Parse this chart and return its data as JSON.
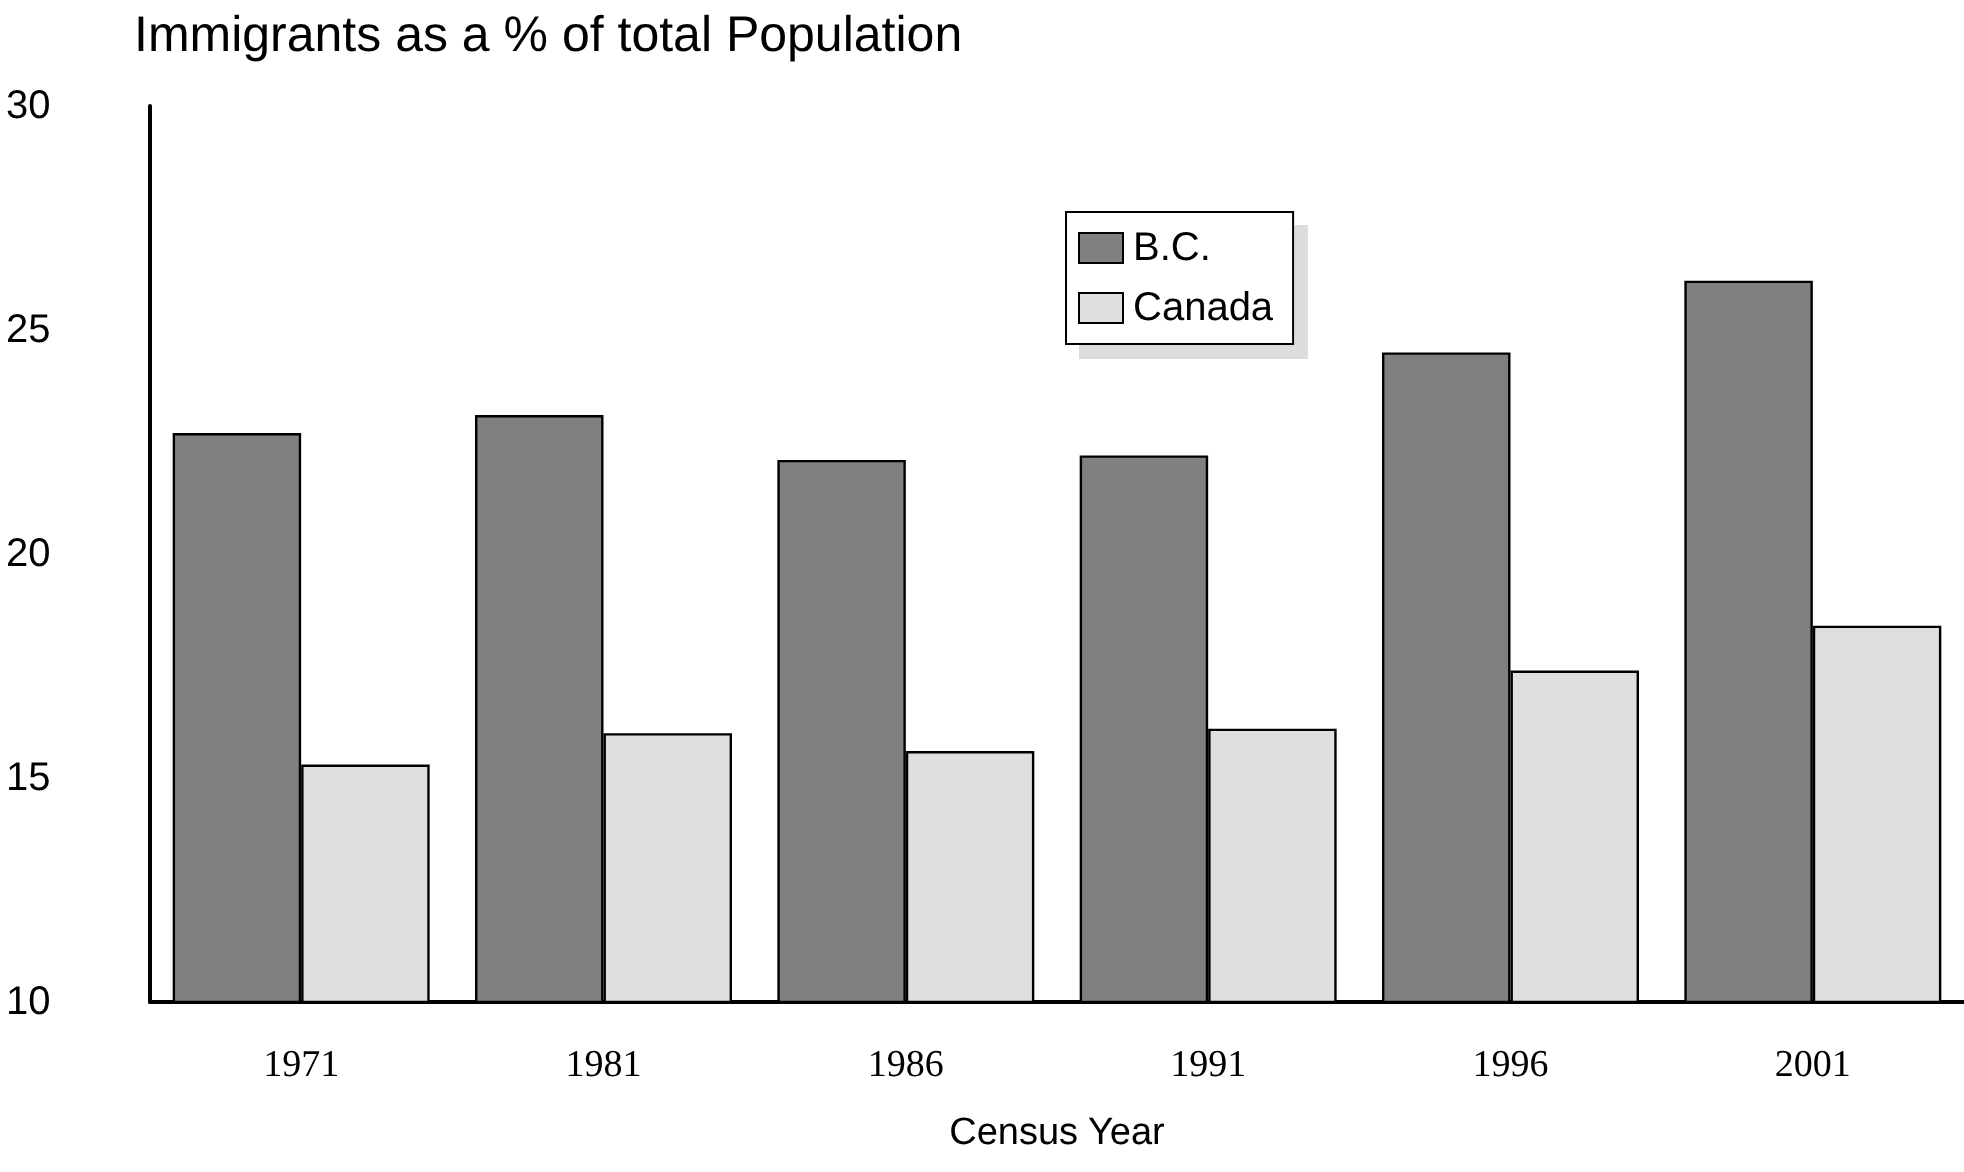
{
  "chart_data": {
    "type": "bar",
    "title": "Immigrants as a % of total Population",
    "xlabel": "Census Year",
    "categories": [
      "1971",
      "1981",
      "1986",
      "1991",
      "1996",
      "2001"
    ],
    "series": [
      {
        "name": "B.C.",
        "color": "#808080",
        "values": [
          22.7,
          23.1,
          22.1,
          22.2,
          24.5,
          26.1
        ]
      },
      {
        "name": "Canada",
        "color": "#dfdfdf",
        "values": [
          15.3,
          16.0,
          15.6,
          16.1,
          17.4,
          18.4
        ]
      }
    ],
    "ylim": [
      10,
      30
    ],
    "yticks": [
      10,
      15,
      20,
      25,
      30
    ],
    "grid": false,
    "legend": "top"
  }
}
